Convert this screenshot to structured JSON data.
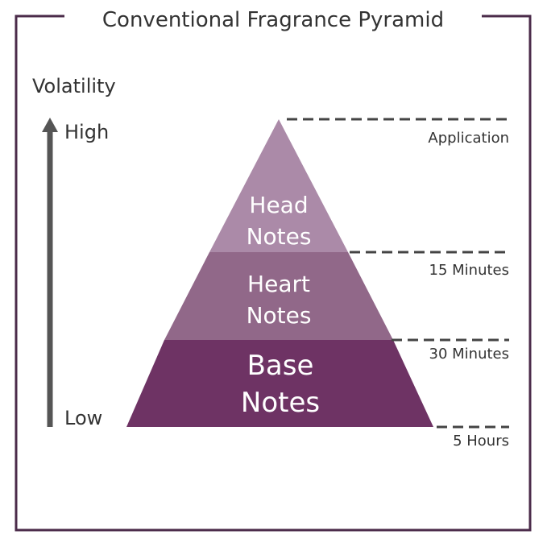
{
  "title": "Conventional Fragrance Pyramid",
  "axis": {
    "label": "Volatility",
    "high": "High",
    "low": "Low"
  },
  "layers": [
    {
      "line1": "Head",
      "line2": "Notes",
      "color": "#ab8aa8"
    },
    {
      "line1": "Heart",
      "line2": "Notes",
      "color": "#916889"
    },
    {
      "line1": "Base",
      "line2": "Notes",
      "color": "#6e3364"
    }
  ],
  "times": [
    "Application",
    "15 Minutes",
    "30 Minutes",
    "5 Hours"
  ],
  "colors": {
    "frame": "#4b2b4a",
    "dash": "#444444",
    "arrow": "#555555",
    "text": "#333333"
  }
}
